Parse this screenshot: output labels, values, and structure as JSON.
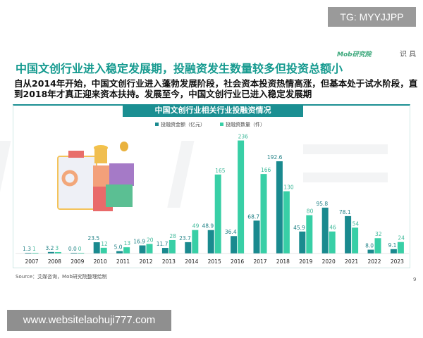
{
  "overlay": {
    "tg": "TG: MYYJJPP",
    "website": "www.websitelaohuji777.com"
  },
  "slide": {
    "logo": "Mob研究院",
    "logo2": "识 具",
    "title": "中国文创行业进入稳定发展期，投融资发生数量较多但投资总额小",
    "subtitle": "自从2014年开始，中国文创行业进入蓬勃发展阶段，社会资本投资热情高涨，但基本处于试水阶段，直到2018年才真正迎来资本扶持。发展至今，中国文创行业已进入稳定发展期",
    "source": "Source：艾媒咨询，Mob研究院整理绘制",
    "page": "9",
    "watermark": "MobTech 袤博"
  },
  "chart_data": {
    "type": "bar",
    "title": "中国文创行业相关行业投融资情况",
    "legend_position": "top",
    "grid": false,
    "categories": [
      "2007",
      "2008",
      "2009",
      "2010",
      "2011",
      "2012",
      "2013",
      "2014",
      "2015",
      "2016",
      "2017",
      "2018",
      "2019",
      "2020",
      "2021",
      "2022",
      "2023"
    ],
    "series": [
      {
        "name": "投融资金额（亿元）",
        "color": "#1a8a8f",
        "values": [
          1.3,
          3.2,
          0.0,
          23.5,
          5.0,
          16.9,
          11.7,
          23.7,
          48.9,
          36.4,
          68.7,
          192.6,
          45.9,
          95.8,
          78.1,
          8.0,
          9.1
        ],
        "labels": [
          "1.3",
          "3.2",
          "0.0",
          "23.5",
          "5.0",
          "16.9",
          "11.7",
          "23.7",
          "48.9",
          "36.4",
          "68.7",
          "192.6",
          "45.9",
          "95.8",
          "78.1",
          "8.0",
          "9.1"
        ]
      },
      {
        "name": "投融资数量（件）",
        "color": "#38cfa6",
        "values": [
          1,
          3,
          0,
          12,
          13,
          20,
          28,
          49,
          165,
          236,
          166,
          130,
          80,
          46,
          54,
          32,
          24
        ],
        "labels": [
          "1",
          "3",
          "0",
          "12",
          "13",
          "20",
          "28",
          "49",
          "165",
          "236",
          "166",
          "130",
          "80",
          "46",
          "54",
          "32",
          "24"
        ]
      }
    ]
  }
}
